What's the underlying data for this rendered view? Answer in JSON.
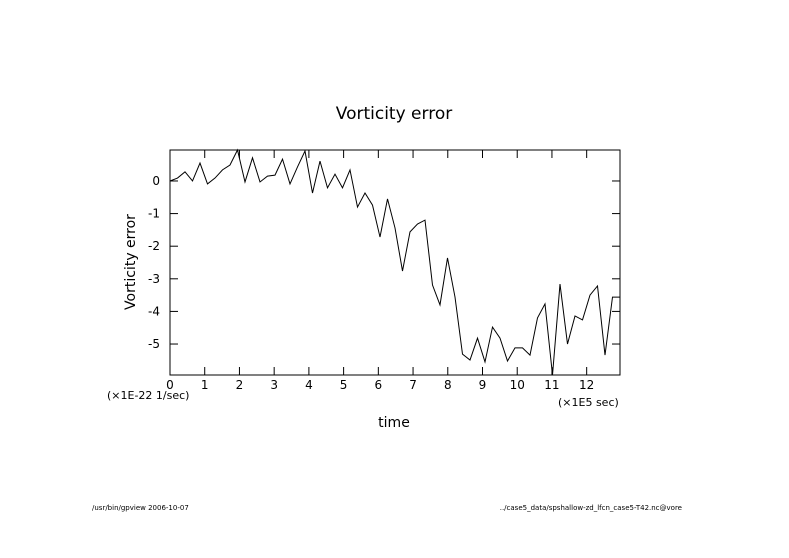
{
  "chart_data": {
    "type": "line",
    "title": "Vorticity error",
    "xlabel": "time",
    "ylabel": "Vorticity error",
    "x_unit": "(×1E5 sec)",
    "y_unit": "(×1E-22 1/sec)",
    "footer_left": "/usr/bin/gpview  2006-10-07",
    "footer_right": "../case5_data/spshallow-zd_lfcn_case5-T42.nc@vore",
    "x": [
      0,
      0.216,
      0.432,
      0.648,
      0.864,
      1.08,
      1.296,
      1.512,
      1.728,
      1.944,
      2.16,
      2.376,
      2.592,
      2.808,
      3.024,
      3.24,
      3.456,
      3.672,
      3.888,
      4.104,
      4.32,
      4.536,
      4.752,
      4.968,
      5.184,
      5.4,
      5.616,
      5.832,
      6.048,
      6.264,
      6.48,
      6.696,
      6.912,
      7.128,
      7.344,
      7.56,
      7.776,
      7.992,
      8.208,
      8.424,
      8.64,
      8.856,
      9.072,
      9.288,
      9.504,
      9.72,
      9.936,
      10.152,
      10.368,
      10.584,
      10.8,
      11.016,
      11.232,
      11.448,
      11.664,
      11.88,
      12.096,
      12.312,
      12.528,
      12.744,
      12.96
    ],
    "series": [
      {
        "color": "#000000",
        "values": [
          0,
          0.09,
          0.28,
          0,
          0.55,
          -0.09,
          0.09,
          0.34,
          0.49,
          0.95,
          -0.03,
          0.71,
          -0.03,
          0.15,
          0.18,
          0.67,
          -0.09,
          0.43,
          0.92,
          -0.37,
          0.61,
          -0.21,
          0.21,
          -0.21,
          0.34,
          -0.8,
          -0.37,
          -0.74,
          -1.72,
          -0.55,
          -1.44,
          -2.76,
          -1.56,
          -1.32,
          -1.2,
          -3.19,
          -3.8,
          -2.36,
          -3.56,
          -5.31,
          -5.49,
          -4.82,
          -5.55,
          -4.48,
          -4.82,
          -5.52,
          -5.12,
          -5.12,
          -5.34,
          -4.2,
          -3.77,
          -5.95,
          -3.16,
          -5.0,
          -4.14,
          -4.26,
          -3.5,
          -3.22,
          -5.34,
          -3.56,
          -3.56
        ]
      }
    ],
    "xlim": [
      0,
      12.96
    ],
    "ylim": [
      -5.95,
      0.95
    ],
    "xticks": [
      0,
      1,
      2,
      3,
      4,
      5,
      6,
      7,
      8,
      9,
      10,
      11,
      12
    ],
    "yticks": [
      0,
      -1,
      -2,
      -3,
      -4,
      -5
    ]
  }
}
